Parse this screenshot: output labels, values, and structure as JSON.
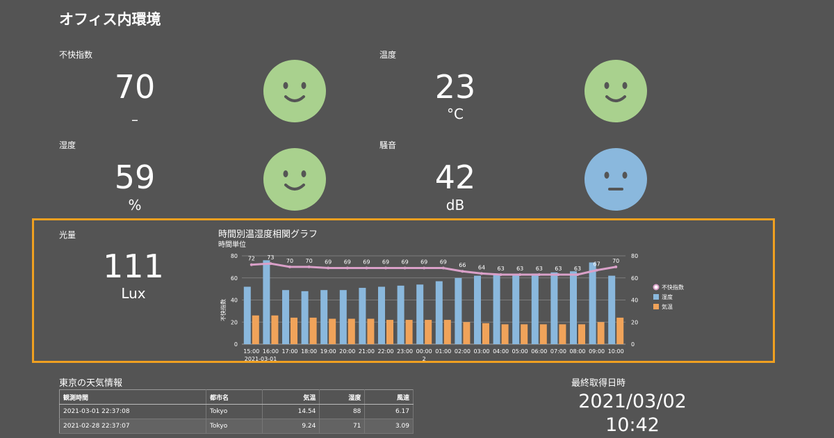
{
  "page_title": "オフィス内環境",
  "metrics": {
    "discomfort": {
      "label": "不快指数",
      "value": "70",
      "unit": "–",
      "face": "happy-face-icon"
    },
    "temperature": {
      "label": "温度",
      "value": "23",
      "unit": "°C",
      "face": "happy-face-icon"
    },
    "humidity": {
      "label": "湿度",
      "value": "59",
      "unit": "%",
      "face": "happy-face-icon"
    },
    "noise": {
      "label": "騒音",
      "value": "42",
      "unit": "dB",
      "face": "neutral-face-icon"
    },
    "light": {
      "label": "光量",
      "value": "111",
      "unit": "Lux"
    }
  },
  "colors": {
    "background": "#545454",
    "face_good": "#a9d18e",
    "face_neutral": "#8ab8dd",
    "highlight_border": "#f0a020",
    "humidity_bar": "#8ab8dd",
    "temperature_bar": "#f0a35a",
    "discomfort_line": "#d9a0c8"
  },
  "chart_data": {
    "type": "bar",
    "title": "時間別温湿度相関グラフ",
    "subtitle": "時間単位",
    "ylabel": "不快指数",
    "ylim": [
      0,
      80
    ],
    "y2lim": [
      0,
      80
    ],
    "yticks": [
      0,
      20,
      40,
      60,
      80
    ],
    "categories": [
      "15:00",
      "16:00",
      "17:00",
      "18:00",
      "19:00",
      "20:00",
      "21:00",
      "22:00",
      "23:00",
      "00:00",
      "01:00",
      "02:00",
      "03:00",
      "04:00",
      "05:00",
      "06:00",
      "07:00",
      "08:00",
      "09:00",
      "10:00"
    ],
    "x_group_labels": [
      "2021-03-01",
      "2"
    ],
    "legend_position": "right",
    "series": [
      {
        "name": "不快指数",
        "type": "line",
        "values": [
          72,
          73,
          70,
          70,
          69,
          69,
          69,
          69,
          69,
          69,
          69,
          66,
          64,
          63,
          63,
          63,
          63,
          63,
          67,
          70
        ]
      },
      {
        "name": "湿度",
        "type": "bar",
        "values": [
          52,
          76,
          49,
          48,
          49,
          49,
          51,
          52,
          53,
          54,
          57,
          60,
          62,
          63,
          63,
          64,
          65,
          66,
          74,
          62
        ]
      },
      {
        "name": "気温",
        "type": "bar",
        "values": [
          26,
          26,
          24,
          24,
          23,
          23,
          23,
          22,
          22,
          22,
          22,
          20,
          19,
          18,
          18,
          18,
          18,
          18,
          20,
          24
        ]
      }
    ]
  },
  "weather": {
    "title": "東京の天気情報",
    "headers": [
      "観測時間",
      "都市名",
      "気温",
      "湿度",
      "風速"
    ],
    "rows": [
      [
        "2021-03-01 22:37:08",
        "Tokyo",
        "14.54",
        "88",
        "6.17"
      ],
      [
        "2021-02-28 22:37:07",
        "Tokyo",
        "9.24",
        "71",
        "3.09"
      ]
    ]
  },
  "last_fetch": {
    "title": "最終取得日時",
    "date": "2021/03/02",
    "time": "10:42"
  }
}
